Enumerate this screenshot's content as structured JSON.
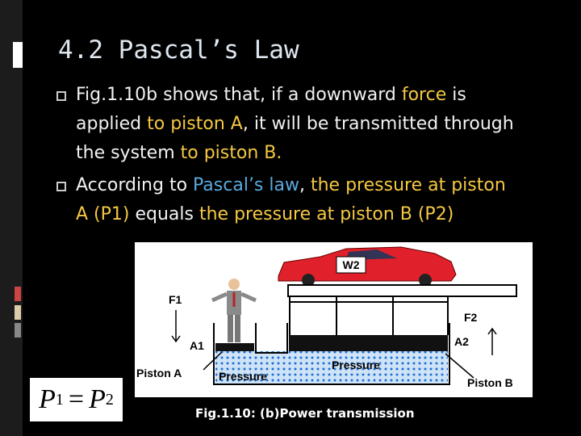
{
  "title": "4.2 Pascal’s Law",
  "bullets": [
    {
      "segments": [
        {
          "text": "Fig.1.10b shows that, if a downward ",
          "tone": "plain"
        },
        {
          "text": "force",
          "tone": "gold"
        },
        {
          "text": " is applied ",
          "tone": "plain"
        },
        {
          "text": "to piston A",
          "tone": "gold"
        },
        {
          "text": ", it will be transmitted through the system ",
          "tone": "plain"
        },
        {
          "text": "to piston B.",
          "tone": "gold"
        }
      ]
    },
    {
      "segments": [
        {
          "text": "According to ",
          "tone": "plain"
        },
        {
          "text": "Pascal’s law",
          "tone": "blue"
        },
        {
          "text": ", ",
          "tone": "plain"
        },
        {
          "text": "the pressure at piston A (P1)",
          "tone": "gold"
        },
        {
          "text": " equals ",
          "tone": "plain"
        },
        {
          "text": "the pressure at piston B (P2)",
          "tone": "gold"
        }
      ]
    }
  ],
  "tones": {
    "plain": "#f2f2f2",
    "gold": "#f5c842",
    "blue": "#5aa9dd"
  },
  "figure": {
    "weight": "W2",
    "force_a": "F1",
    "force_b": "F2",
    "area_a": "A1",
    "area_b": "A2",
    "piston_a": "Piston A",
    "piston_b": "Piston B",
    "pressure_a": "Pressure",
    "pressure_b": "Pressure",
    "caption": "Fig.1.10: (b)Power transmission"
  },
  "formula": {
    "lhs": "P",
    "lhs_sub": "1",
    "op": "=",
    "rhs": "P",
    "rhs_sub": "2"
  }
}
